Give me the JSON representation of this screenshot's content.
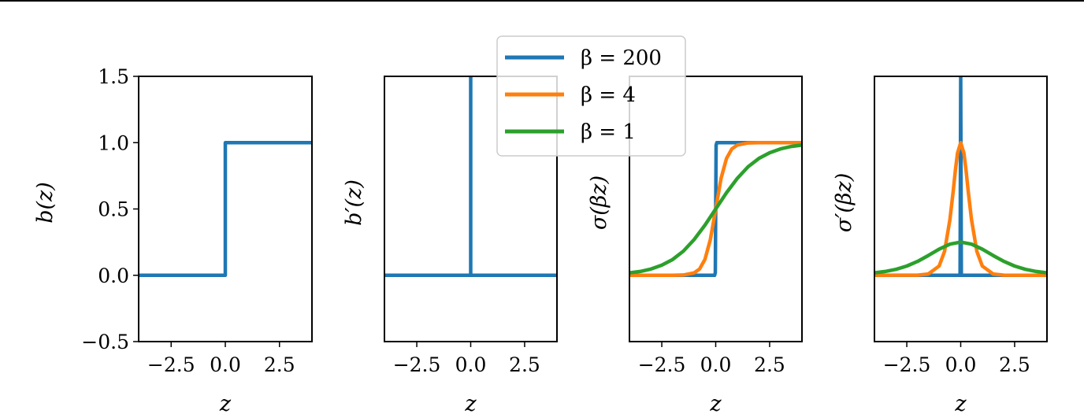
{
  "figure": {
    "background": "#ffffff"
  },
  "colors": {
    "beta_200": "#1f77b4",
    "beta_4": "#ff7f0e",
    "beta_1": "#2ca02c",
    "axes": "#000000"
  },
  "legend": {
    "placement": "upper-center overlapping panels 2-3",
    "entries": [
      {
        "label": "β = 200",
        "color": "#1f77b4"
      },
      {
        "label": "β = 4",
        "color": "#ff7f0e"
      },
      {
        "label": "β = 1",
        "color": "#2ca02c"
      }
    ]
  },
  "chart_data": [
    {
      "type": "line",
      "title": "",
      "xlabel": "z",
      "ylabel": "b(z)",
      "xlim": [
        -4,
        4
      ],
      "ylim": [
        -0.5,
        1.5
      ],
      "xticks": [
        -2.5,
        0.0,
        2.5
      ],
      "xtick_labels": [
        "−2.5",
        "0.0",
        "2.5"
      ],
      "yticks": [
        -0.5,
        0.0,
        0.5,
        1.0,
        1.5
      ],
      "ytick_labels": [
        "−0.5",
        "0.0",
        "0.5",
        "1.0",
        "1.5"
      ],
      "grid": false,
      "series": [
        {
          "color": "#1f77b4",
          "x": [
            -4,
            0,
            0,
            4
          ],
          "y": [
            0,
            0,
            1,
            1
          ]
        }
      ]
    },
    {
      "type": "line",
      "title": "",
      "xlabel": "z",
      "ylabel": "b′(z)",
      "xlim": [
        -4,
        4
      ],
      "ylim": [
        -0.5,
        1.5
      ],
      "xticks": [
        -2.5,
        0.0,
        2.5
      ],
      "xtick_labels": [
        "−2.5",
        "0.0",
        "2.5"
      ],
      "yticks": [],
      "ytick_labels": [],
      "grid": false,
      "series": [
        {
          "color": "#1f77b4",
          "x": [
            -4,
            0,
            0,
            0,
            4
          ],
          "y": [
            0,
            0,
            1.5,
            0,
            0
          ]
        }
      ]
    },
    {
      "type": "line",
      "title": "",
      "xlabel": "z",
      "ylabel": "σ(βz)",
      "xlim": [
        -4,
        4
      ],
      "ylim": [
        -0.5,
        1.5
      ],
      "xticks": [
        -2.5,
        0.0,
        2.5
      ],
      "xtick_labels": [
        "−2.5",
        "0.0",
        "2.5"
      ],
      "yticks": [],
      "ytick_labels": [],
      "grid": false,
      "series": [
        {
          "name": "β = 200",
          "color": "#1f77b4",
          "x": [
            -4,
            -0.05,
            -0.02,
            0,
            0.02,
            0.05,
            4
          ],
          "y": [
            0,
            0,
            0.02,
            0.5,
            0.98,
            1,
            1
          ]
        },
        {
          "name": "β = 4",
          "color": "#ff7f0e",
          "x": [
            -4,
            -3,
            -2,
            -1.5,
            -1,
            -0.75,
            -0.5,
            -0.25,
            0,
            0.25,
            0.5,
            0.75,
            1,
            1.5,
            2,
            3,
            4
          ],
          "y": [
            0,
            0,
            0,
            0.002,
            0.018,
            0.047,
            0.119,
            0.269,
            0.5,
            0.731,
            0.881,
            0.953,
            0.982,
            0.998,
            1,
            1,
            1
          ]
        },
        {
          "name": "β = 1",
          "color": "#2ca02c",
          "x": [
            -4,
            -3.5,
            -3,
            -2.5,
            -2,
            -1.5,
            -1,
            -0.5,
            0,
            0.5,
            1,
            1.5,
            2,
            2.5,
            3,
            3.5,
            4
          ],
          "y": [
            0.018,
            0.029,
            0.047,
            0.076,
            0.119,
            0.182,
            0.269,
            0.378,
            0.5,
            0.622,
            0.731,
            0.818,
            0.881,
            0.924,
            0.953,
            0.971,
            0.982
          ]
        }
      ]
    },
    {
      "type": "line",
      "title": "",
      "xlabel": "z",
      "ylabel": "σ′(βz)",
      "xlim": [
        -4,
        4
      ],
      "ylim": [
        -0.5,
        1.5
      ],
      "xticks": [
        -2.5,
        0.0,
        2.5
      ],
      "xtick_labels": [
        "−2.5",
        "0.0",
        "2.5"
      ],
      "yticks": [],
      "ytick_labels": [],
      "grid": false,
      "series": [
        {
          "name": "β = 200",
          "color": "#1f77b4",
          "x": [
            -4,
            -0.03,
            0,
            0.03,
            4
          ],
          "y": [
            0,
            0,
            1.5,
            0,
            0
          ]
        },
        {
          "name": "β = 4",
          "color": "#ff7f0e",
          "x": [
            -4,
            -2,
            -1.5,
            -1,
            -0.75,
            -0.5,
            -0.35,
            -0.25,
            -0.15,
            0,
            0.15,
            0.25,
            0.35,
            0.5,
            0.75,
            1,
            1.5,
            2,
            4
          ],
          "y": [
            0,
            0.001,
            0.01,
            0.07,
            0.18,
            0.42,
            0.63,
            0.79,
            0.92,
            1.0,
            0.92,
            0.79,
            0.63,
            0.42,
            0.18,
            0.07,
            0.01,
            0.001,
            0
          ]
        },
        {
          "name": "β = 1",
          "color": "#2ca02c",
          "x": [
            -4,
            -3.5,
            -3,
            -2.5,
            -2,
            -1.5,
            -1,
            -0.5,
            0,
            0.5,
            1,
            1.5,
            2,
            2.5,
            3,
            3.5,
            4
          ],
          "y": [
            0.018,
            0.029,
            0.045,
            0.07,
            0.105,
            0.149,
            0.197,
            0.235,
            0.25,
            0.235,
            0.197,
            0.149,
            0.105,
            0.07,
            0.045,
            0.029,
            0.018
          ]
        }
      ]
    }
  ]
}
